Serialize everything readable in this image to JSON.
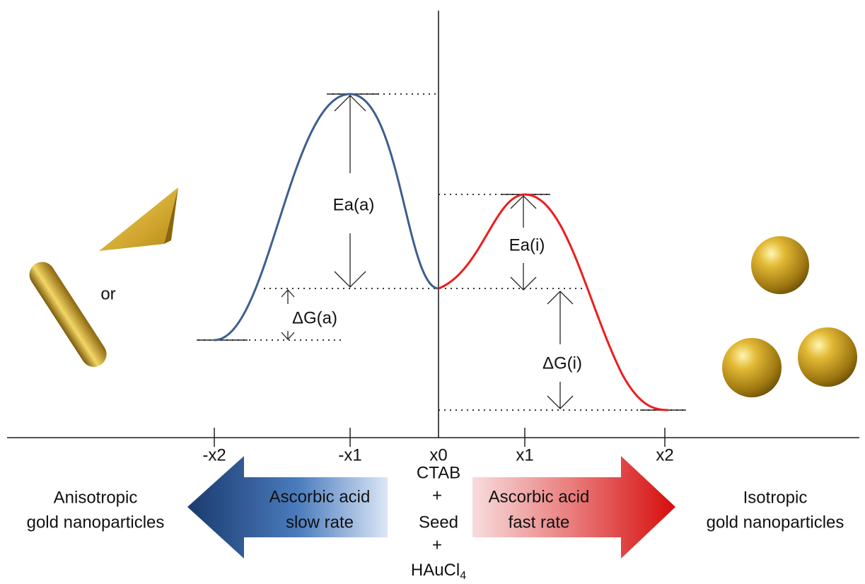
{
  "labels": {
    "or": "or",
    "ea_a": "Ea(a)",
    "dg_a": "ΔG(a)",
    "ea_i": "Ea(i)",
    "dg_i": "ΔG(i)"
  },
  "axis": {
    "ticks": [
      "-x2",
      "-x1",
      "x0",
      "x1",
      "x2"
    ]
  },
  "reagents": {
    "lines": [
      "CTAB",
      "+",
      "Seed",
      "+"
    ],
    "last": {
      "text": "HAuCl",
      "subscript": "4"
    }
  },
  "slow_arrow": {
    "lines": [
      "Ascorbic acid",
      "slow rate"
    ]
  },
  "fast_arrow": {
    "lines": [
      "Ascorbic acid",
      "fast rate"
    ]
  },
  "left_product": {
    "lines": [
      "Anisotropic",
      "gold nanoparticles"
    ]
  },
  "right_product": {
    "lines": [
      "Isotropic",
      "gold nanoparticles"
    ]
  }
}
